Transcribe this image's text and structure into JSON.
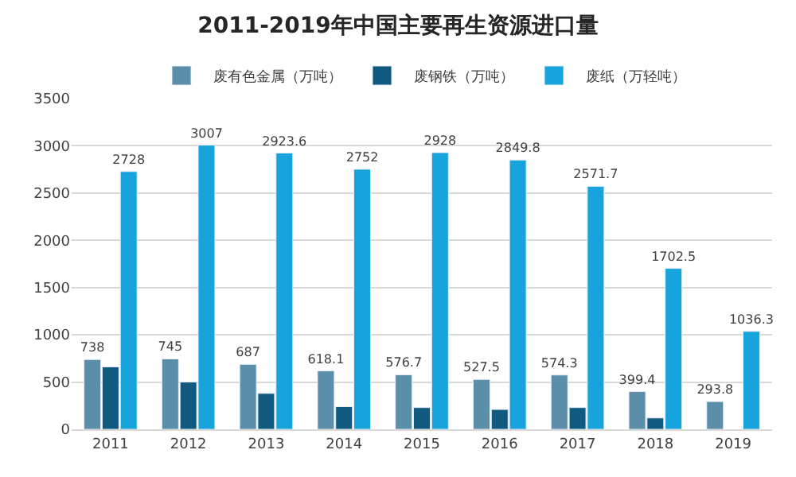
{
  "chart_data": {
    "type": "bar",
    "title": "2011-2019年中国主要再生资源进口量",
    "categories": [
      "2011",
      "2012",
      "2013",
      "2014",
      "2015",
      "2016",
      "2017",
      "2018",
      "2019"
    ],
    "series": [
      {
        "name": "废有色金属（万吨）",
        "color": "#5b8ea8",
        "values": [
          738,
          745,
          687,
          618.1,
          576.7,
          527.5,
          574.3,
          399.4,
          293.8
        ],
        "value_labels": [
          "738",
          "745",
          "687",
          "618.1",
          "576.7",
          "527.5",
          "574.3",
          "399.4",
          "293.8"
        ]
      },
      {
        "name": "废钢铁（万吨）",
        "color": "#0f5a7e",
        "values": [
          660,
          500,
          380,
          240,
          230,
          210,
          230,
          120,
          null
        ]
      },
      {
        "name": "废纸（万轻吨）",
        "color": "#17a3dc",
        "values": [
          2728,
          3007,
          2923.6,
          2752,
          2928,
          2849.8,
          2571.7,
          1702.5,
          1036.3
        ],
        "value_labels": [
          "2728",
          "3007",
          "2923.6",
          "2752",
          "2928",
          "2849.8",
          "2571.7",
          "1702.5",
          "1036.3"
        ]
      }
    ],
    "ylim": [
      0,
      3500
    ],
    "yticks": [
      0,
      500,
      1000,
      1500,
      2000,
      2500,
      3000,
      3500
    ],
    "grid": "y",
    "legend": "top"
  }
}
